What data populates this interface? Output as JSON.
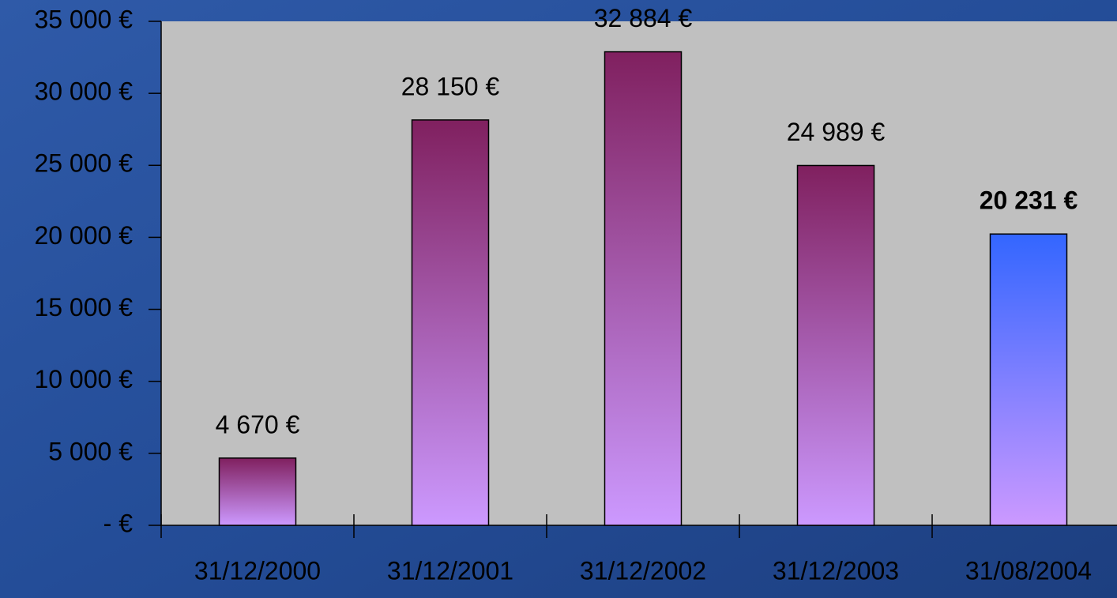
{
  "chart_data": {
    "type": "bar",
    "categories": [
      "31/12/2000",
      "31/12/2001",
      "31/12/2002",
      "31/12/2003",
      "31/08/2004"
    ],
    "values": [
      4670,
      28150,
      32884,
      24989,
      20231
    ],
    "value_labels": [
      "4 670 €",
      "28 150 €",
      "32 884 €",
      "24 989 €",
      "20 231 €"
    ],
    "colors": [
      "#80205f",
      "#80205f",
      "#80205f",
      "#80205f",
      "#3366ff"
    ],
    "gradient_bottom": "#cc99ff",
    "bold_labels": [
      false,
      false,
      false,
      false,
      true
    ],
    "ylim": [
      0,
      35000
    ],
    "yticks": [
      {
        "value": 0,
        "label": "- €"
      },
      {
        "value": 5000,
        "label": "5 000 €"
      },
      {
        "value": 10000,
        "label": "10 000 €"
      },
      {
        "value": 15000,
        "label": "15 000 €"
      },
      {
        "value": 20000,
        "label": "20 000 €"
      },
      {
        "value": 25000,
        "label": "25 000 €"
      },
      {
        "value": 30000,
        "label": "30 000 €"
      },
      {
        "value": 35000,
        "label": "35 000 €"
      }
    ],
    "grid": false
  }
}
